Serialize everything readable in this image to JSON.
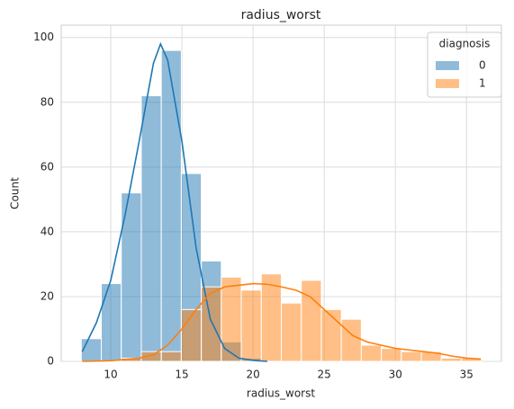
{
  "chart_data": {
    "type": "histogram",
    "title": "radius_worst",
    "x_label": "radius_worst",
    "y_label": "Count",
    "bins": [
      7.93,
      9.336,
      10.741,
      12.147,
      13.552,
      14.958,
      16.363,
      17.769,
      19.174,
      20.58,
      21.985,
      23.391,
      24.796,
      26.202,
      27.607,
      29.013,
      30.418,
      31.824,
      33.229,
      34.635,
      36.04
    ],
    "legend_title": "diagnosis",
    "legend": "upper right",
    "grid": true,
    "series": [
      {
        "name": "0",
        "color": "#1f77b4",
        "values": [
          7,
          24,
          52,
          82,
          96,
          58,
          31,
          6,
          1,
          0,
          0,
          0,
          0,
          0,
          0,
          0,
          0,
          0,
          0,
          0
        ],
        "kde": {
          "x": [
            8,
            9,
            10,
            11,
            12,
            13,
            13.5,
            14,
            15,
            16,
            17,
            18,
            19,
            20,
            21
          ],
          "y": [
            3,
            12,
            25,
            45,
            68,
            92,
            98,
            93,
            68,
            35,
            13,
            4,
            1,
            0.3,
            0
          ]
        }
      },
      {
        "name": "1",
        "color": "#ff7f0e",
        "values": [
          0,
          0,
          1,
          3,
          3,
          16,
          23,
          26,
          22,
          27,
          18,
          25,
          16,
          13,
          5,
          4,
          3,
          3,
          1,
          1
        ],
        "kde": {
          "x": [
            8,
            10,
            12,
            13,
            14,
            15,
            16,
            17,
            18,
            19,
            20,
            21,
            22,
            23,
            24,
            25,
            26,
            27,
            28,
            29,
            30,
            31,
            32,
            33,
            34,
            35,
            36
          ],
          "y": [
            0,
            0.2,
            1,
            2,
            5,
            10,
            16,
            21,
            23,
            23.5,
            24,
            23.8,
            23,
            22,
            20,
            16,
            12,
            8,
            6,
            5,
            4,
            3.5,
            3,
            2.5,
            1.6,
            1,
            0.7
          ]
        }
      }
    ],
    "xlim": [
      6.52,
      37.45
    ],
    "xticks": [
      10,
      15,
      20,
      25,
      30,
      35
    ],
    "ylim": [
      0,
      103.8
    ],
    "yticks": [
      0,
      20,
      40,
      60,
      80,
      100
    ]
  }
}
